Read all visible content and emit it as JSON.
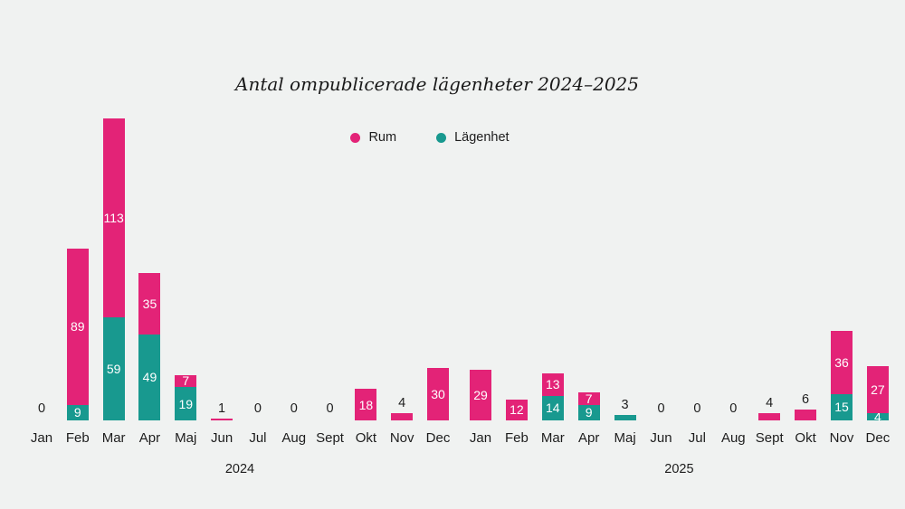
{
  "chart": {
    "title": "Antal ompublicerade lägenheter 2024–2025",
    "background_color": "#f0f2f1",
    "text_color": "#1d1d1d",
    "legend": [
      {
        "name": "Rum",
        "color": "#e32377"
      },
      {
        "name": "Lägenhet",
        "color": "#18998f"
      }
    ]
  },
  "chart_data": {
    "type": "bar",
    "stacked": true,
    "title": "Antal ompublicerade lägenheter 2024–2025",
    "xlabel": "",
    "ylabel": "",
    "grid": false,
    "legend_position": "top-center",
    "value_labels": "inside-white-or-above-dark",
    "groups": [
      {
        "year": "2024",
        "categories": [
          "Jan",
          "Feb",
          "Mar",
          "Apr",
          "Maj",
          "Jun",
          "Jul",
          "Aug",
          "Sept",
          "Okt",
          "Nov",
          "Dec"
        ],
        "series": [
          {
            "name": "Rum",
            "color": "#e32377",
            "values": [
              0,
              89,
              113,
              35,
              7,
              1,
              0,
              0,
              0,
              18,
              4,
              30
            ]
          },
          {
            "name": "Lägenhet",
            "color": "#18998f",
            "values": [
              0,
              9,
              59,
              49,
              19,
              0,
              0,
              0,
              0,
              0,
              0,
              0
            ]
          }
        ]
      },
      {
        "year": "2025",
        "categories": [
          "Jan",
          "Feb",
          "Mar",
          "Apr",
          "Maj",
          "Jun",
          "Jul",
          "Aug",
          "Sept",
          "Okt",
          "Nov",
          "Dec"
        ],
        "series": [
          {
            "name": "Rum",
            "color": "#e32377",
            "values": [
              29,
              12,
              13,
              7,
              0,
              0,
              0,
              0,
              4,
              6,
              36,
              27
            ]
          },
          {
            "name": "Lägenhet",
            "color": "#18998f",
            "values": [
              0,
              0,
              14,
              9,
              3,
              0,
              0,
              0,
              0,
              0,
              15,
              4
            ]
          }
        ]
      }
    ]
  }
}
